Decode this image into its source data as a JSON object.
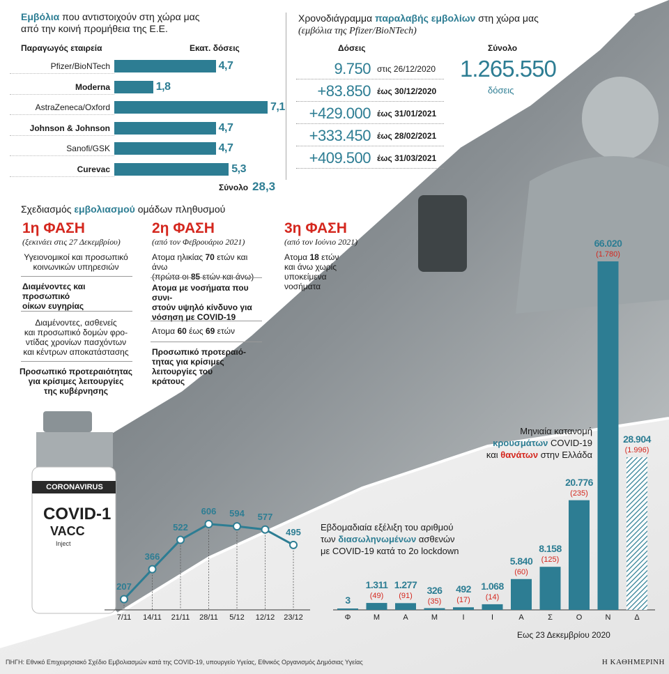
{
  "vaccines": {
    "title_bold": "Εμβόλια",
    "title_rest1": " που αντιστοιχούν στη χώρα μας",
    "title_rest2": "από την κοινή προμήθεια της Ε.Ε.",
    "col_company": "Παραγωγός εταιρεία",
    "col_doses": "Εκατ. δόσεις",
    "total_label": "Σύνολο",
    "total_value": "28,3"
  },
  "timeline": {
    "title_pre": "Χρονοδιάγραμμα ",
    "title_bold": "παραλαβής εμβολίων",
    "title_post": " στη χώρα μας",
    "subtitle": "(εμβόλια της Pfizer/BioNTech)",
    "col_doses": "Δόσεις",
    "col_total": "Σύνολο",
    "total_value": "1.265.550",
    "total_unit": "δόσεις",
    "rows": [
      {
        "dose": "9.750",
        "date": "στις 26/12/2020",
        "bold": false
      },
      {
        "dose": "+83.850",
        "date": "έως 30/12/2020",
        "bold": true
      },
      {
        "dose": "+429.000",
        "date": "έως 31/01/2021",
        "bold": true
      },
      {
        "dose": "+333.450",
        "date": "έως 28/02/2021",
        "bold": true
      },
      {
        "dose": "+409.500",
        "date": "έως 31/03/2021",
        "bold": true
      }
    ]
  },
  "plan": {
    "title_pre": "Σχεδιασμός ",
    "title_bold": "εμβολιασμού",
    "title_post": " ομάδων πληθυσμού",
    "phase1": {
      "title": "1η ΦΑΣΗ",
      "sub": "(ξεκινάει στις 27 Δεκεμβρίου)",
      "g1a": "Υγειονομικοί και προσωπικό",
      "g1b": "κοινωνικών υπηρεσιών",
      "g2a": "Διαμένοντες και προσωπικό",
      "g2b": "οίκων ευγηρίας",
      "g3a": "Διαμένοντες, ασθενείς",
      "g3b": "και προσωπικό δομών φρο-",
      "g3c": "ντίδας χρονίων πασχόντων",
      "g3d": "και κέντρων αποκατάστασης",
      "g4a": "Προσωπικό προτεραιότητας",
      "g4b": "για κρίσιμες λειτουργίες",
      "g4c": "της κυβέρνησης"
    },
    "phase2": {
      "title": "2η ΦΑΣΗ",
      "sub": "(από τον Φεβρουάριο 2021)",
      "g1a_pre": "Ατομα ηλικίας ",
      "g1a_n": "70",
      "g1a_post": " ετών και άνω",
      "g1b_pre": "(πρώτα οι ",
      "g1b_n": "85",
      "g1b_post": " ετών και άνω)",
      "g2a": "Ατομα με νοσήματα που συνι-",
      "g2b": "στούν υψηλό κίνδυνο για",
      "g2c": "νόσηση με COVID-19",
      "g3_pre": "Ατομα ",
      "g3_n1": "60",
      "g3_mid": " έως ",
      "g3_n2": "69",
      "g3_post": " ετών",
      "g4a": "Προσωπικό προτεραιό-",
      "g4b": "τητας για κρίσιμες",
      "g4c": "λειτουργίες του",
      "g4d": "κράτους"
    },
    "phase3": {
      "title": "3η ΦΑΣΗ",
      "sub": "(από τον Ιούνιο 2021)",
      "g1a_pre": "Ατομα ",
      "g1a_n": "18",
      "g1a_post": " ετών",
      "g1b": "και άνω χωρίς",
      "g1c": "υποκείμενα",
      "g1d": "νοσήματα"
    }
  },
  "monthly": {
    "title1": "Μηνιαία κατανομή",
    "title2_bold": "κρουσμάτων",
    "title2_post": " COVID-19",
    "title3_pre": "και ",
    "title3_bold": "θανάτων",
    "title3_post": " στην Ελλάδα",
    "note": "Εως 23 Δεκεμβρίου 2020"
  },
  "weekly": {
    "title1": "Εβδομαδιαία εξέλιξη του αριθμού",
    "title2_pre": "των ",
    "title2_bold": "διασωληνωμένων",
    "title2_post": " ασθενών",
    "title3": "με COVID-19 κατά το 2ο lockdown"
  },
  "photo_text": {
    "label1": "CORONAVIRUS",
    "label2": "COVID-1",
    "label3": "VACC",
    "label4": "Inject"
  },
  "footer": {
    "source": "ΠΗΓΗ: Εθνικό Επιχειρησιακό Σχέδιο Εμβολιασμών κατά της COVID-19, υπουργείο Υγείας, Εθνικός Οργανισμός Δημόσιας Υγείας",
    "brand": "Η ΚΑΘΗΜΕΡΙΝΗ"
  },
  "colors": {
    "accent": "#2d7d93",
    "red": "#d4271e"
  },
  "chart_data": [
    {
      "type": "bar",
      "title": "Εμβόλια που αντιστοιχούν στη χώρα μας από την κοινή προμήθεια της Ε.Ε.",
      "categories": [
        "Pfizer/BioNTech",
        "Moderna",
        "AstraZeneca/Oxford",
        "Johnson & Johnson",
        "Sanofi/GSK",
        "Curevac"
      ],
      "bold": [
        false,
        true,
        false,
        true,
        false,
        true
      ],
      "values": [
        4.7,
        1.8,
        7.1,
        4.7,
        4.7,
        5.3
      ],
      "labels": [
        "4,7",
        "1,8",
        "7,1",
        "4,7",
        "4,7",
        "5,3"
      ],
      "xlabel": "",
      "ylabel": "Εκατ. δόσεις",
      "xlim": [
        0,
        7.1
      ]
    },
    {
      "type": "bar",
      "title": "Μηνιαία κατανομή κρουσμάτων COVID-19 και θανάτων στην Ελλάδα",
      "categories": [
        "Φ",
        "Μ",
        "Α",
        "Μ",
        "Ι",
        "Ι",
        "Α",
        "Σ",
        "Ο",
        "Ν",
        "Δ"
      ],
      "series": [
        {
          "name": "κρουσμάτων",
          "values": [
            3,
            1311,
            1277,
            326,
            492,
            1068,
            5840,
            8158,
            20776,
            66020,
            28904
          ],
          "labels": [
            "3",
            "1.311",
            "1.277",
            "326",
            "492",
            "1.068",
            "5.840",
            "8.158",
            "20.776",
            "66.020",
            "28.904"
          ]
        },
        {
          "name": "θανάτων",
          "values": [
            null,
            49,
            91,
            35,
            17,
            14,
            60,
            125,
            235,
            1780,
            1996
          ],
          "labels": [
            "",
            "(49)",
            "(91)",
            "(35)",
            "(17)",
            "(14)",
            "(60)",
            "(125)",
            "(235)",
            "(1.780)",
            "(1.996)"
          ]
        }
      ],
      "ylim": [
        0,
        66020
      ]
    },
    {
      "type": "line",
      "title": "Εβδομαδιαία εξέλιξη του αριθμού των διασωληνωμένων ασθενών με COVID-19 κατά το 2ο lockdown",
      "x": [
        "7/11",
        "14/11",
        "21/11",
        "28/11",
        "5/12",
        "12/12",
        "23/12"
      ],
      "series": [
        {
          "values": [
            207,
            366,
            522,
            606,
            594,
            577,
            495
          ]
        }
      ],
      "ylim": [
        150,
        650
      ]
    }
  ]
}
